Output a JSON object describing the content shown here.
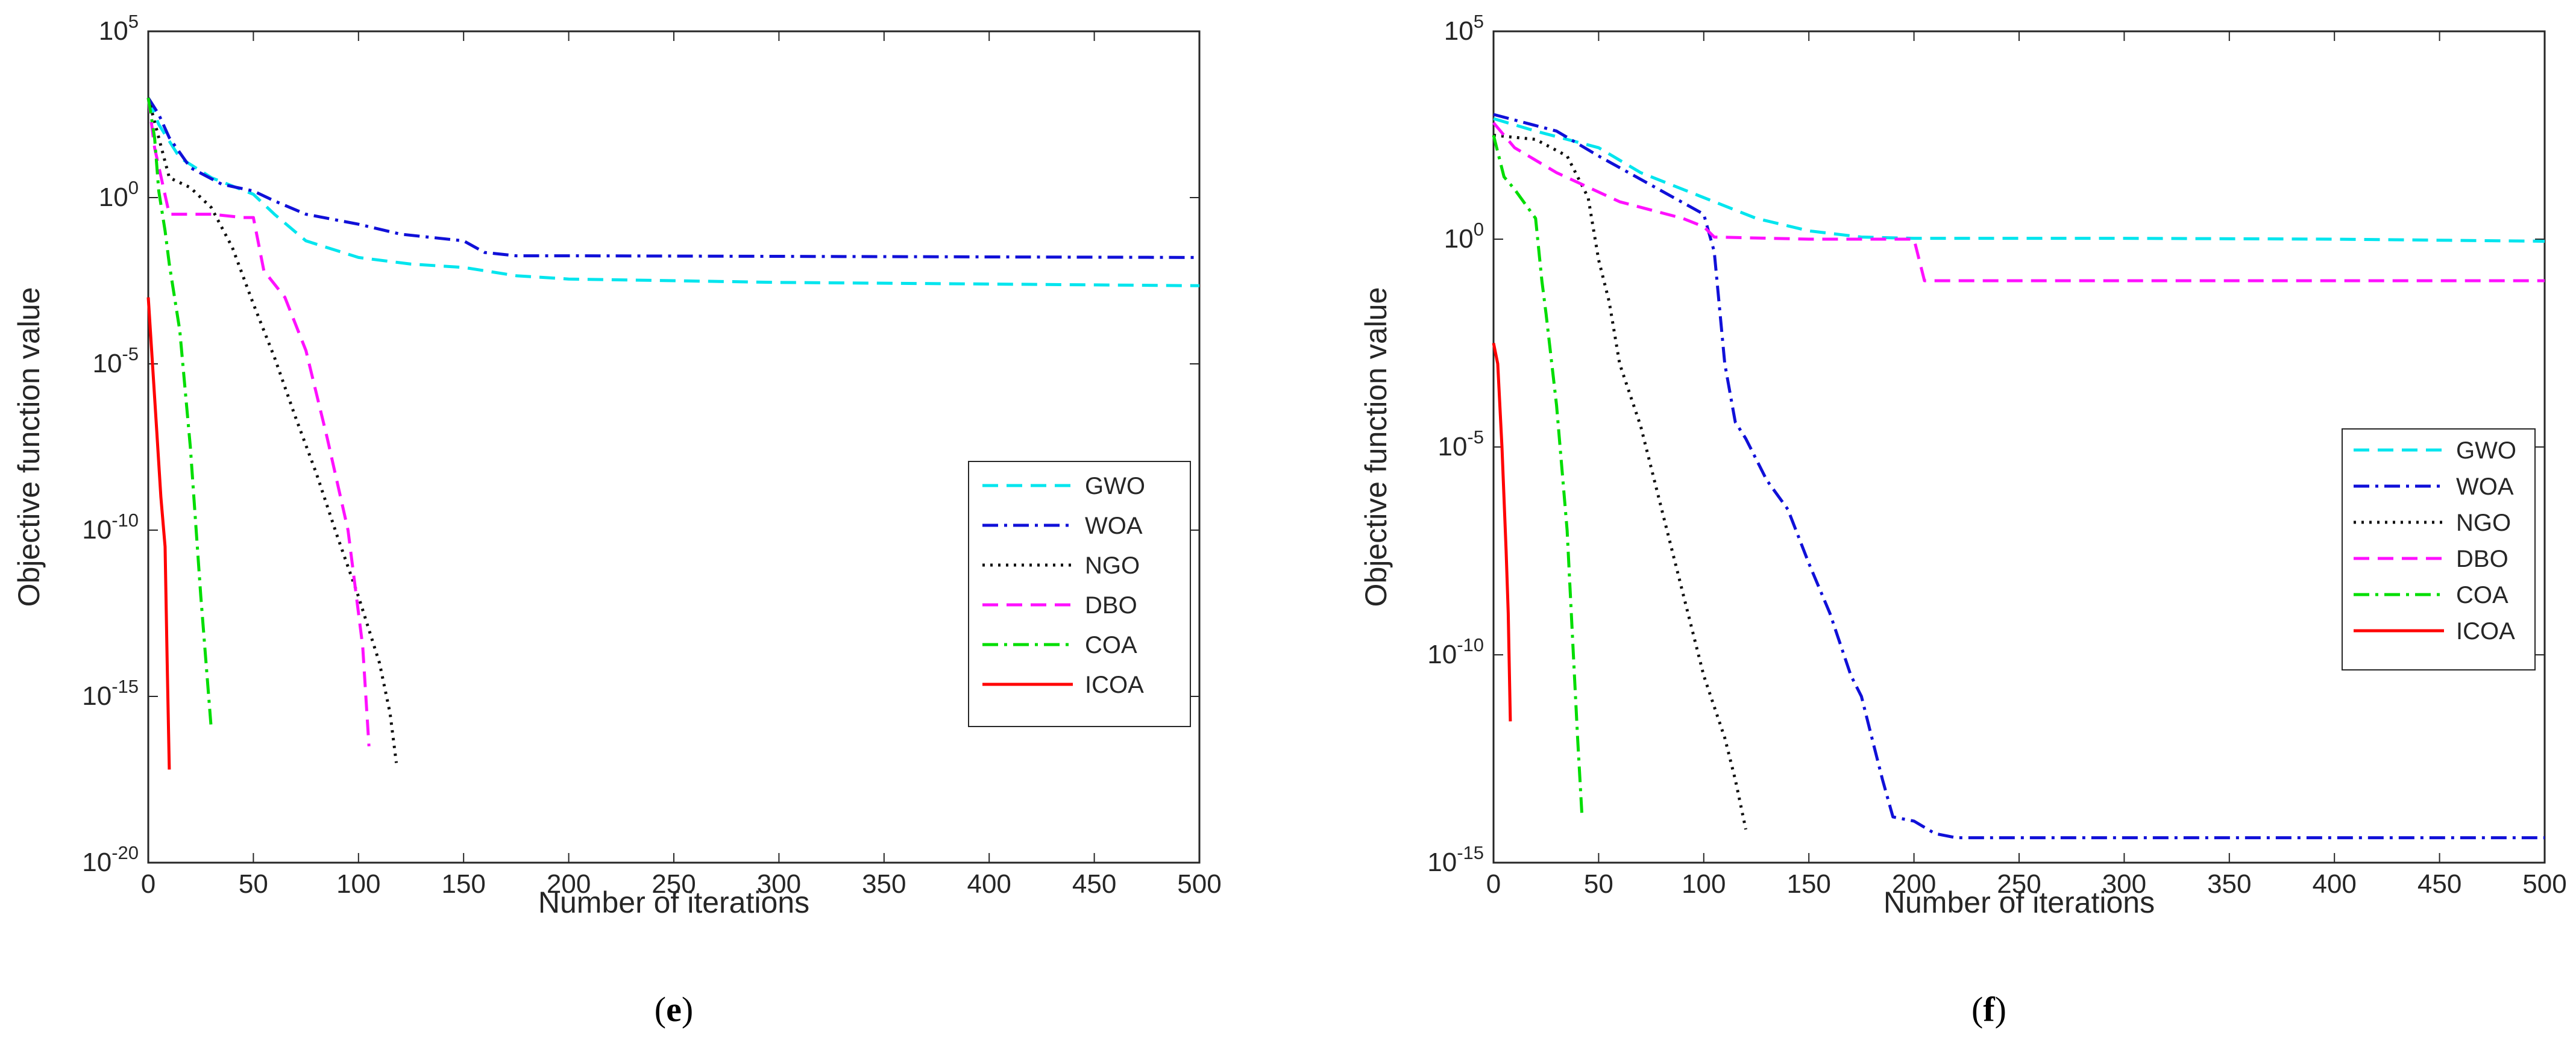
{
  "chart_data": [
    {
      "type": "line",
      "panel": "e",
      "caption": {
        "open": "(",
        "letter": "e",
        "close": ")"
      },
      "title": "",
      "xlabel": "Number of iterations",
      "ylabel": "Objective function value",
      "xlim": [
        0,
        500
      ],
      "ylim_log10": [
        -20,
        5
      ],
      "y_scale": "log",
      "xticks": [
        "0",
        "50",
        "100",
        "150",
        "200",
        "250",
        "300",
        "350",
        "400",
        "450",
        "500"
      ],
      "yticks": [
        {
          "base": "10",
          "exp": "5"
        },
        {
          "base": "10",
          "exp": "0"
        },
        {
          "base": "10",
          "exp": "-5"
        },
        {
          "base": "10",
          "exp": "-10"
        },
        {
          "base": "10",
          "exp": "-15"
        },
        {
          "base": "10",
          "exp": "-20"
        }
      ],
      "legend_position": "right-center",
      "series": [
        {
          "name": "GWO",
          "color": "#00e5ee",
          "dash": "dashed",
          "x_log10y": [
            [
              0,
              3.0
            ],
            [
              5,
              2.2
            ],
            [
              15,
              1.2
            ],
            [
              30,
              0.6
            ],
            [
              50,
              0.1
            ],
            [
              60,
              -0.5
            ],
            [
              75,
              -1.3
            ],
            [
              100,
              -1.8
            ],
            [
              125,
              -2.0
            ],
            [
              150,
              -2.1
            ],
            [
              175,
              -2.35
            ],
            [
              200,
              -2.45
            ],
            [
              300,
              -2.55
            ],
            [
              400,
              -2.6
            ],
            [
              500,
              -2.65
            ]
          ]
        },
        {
          "name": "WOA",
          "color": "#1010d8",
          "dash": "dashdot",
          "x_log10y": [
            [
              0,
              3.0
            ],
            [
              5,
              2.5
            ],
            [
              10,
              1.8
            ],
            [
              20,
              0.9
            ],
            [
              35,
              0.4
            ],
            [
              50,
              0.2
            ],
            [
              60,
              -0.1
            ],
            [
              75,
              -0.5
            ],
            [
              100,
              -0.8
            ],
            [
              120,
              -1.1
            ],
            [
              150,
              -1.3
            ],
            [
              160,
              -1.65
            ],
            [
              175,
              -1.75
            ],
            [
              200,
              -1.75
            ],
            [
              500,
              -1.8
            ]
          ]
        },
        {
          "name": "NGO",
          "color": "#101010",
          "dash": "dotted",
          "x_log10y": [
            [
              0,
              3.0
            ],
            [
              5,
              1.8
            ],
            [
              10,
              0.6
            ],
            [
              20,
              0.3
            ],
            [
              30,
              -0.3
            ],
            [
              40,
              -1.5
            ],
            [
              50,
              -3.2
            ],
            [
              60,
              -4.8
            ],
            [
              70,
              -6.6
            ],
            [
              80,
              -8.3
            ],
            [
              90,
              -10.2
            ],
            [
              100,
              -12.0
            ],
            [
              110,
              -14.0
            ],
            [
              115,
              -15.5
            ],
            [
              118,
              -17.0
            ]
          ]
        },
        {
          "name": "DBO",
          "color": "#ff10ff",
          "dash": "dashed",
          "x_log10y": [
            [
              0,
              3.0
            ],
            [
              3,
              1.5
            ],
            [
              10,
              -0.5
            ],
            [
              20,
              -0.5
            ],
            [
              30,
              -0.5
            ],
            [
              45,
              -0.6
            ],
            [
              50,
              -0.6
            ],
            [
              55,
              -2.2
            ],
            [
              65,
              -3.0
            ],
            [
              75,
              -4.6
            ],
            [
              85,
              -7.2
            ],
            [
              95,
              -10.0
            ],
            [
              102,
              -13.5
            ],
            [
              105,
              -16.5
            ]
          ]
        },
        {
          "name": "COA",
          "color": "#00dd00",
          "dash": "dashdot",
          "x_log10y": [
            [
              0,
              3.0
            ],
            [
              3,
              1.8
            ],
            [
              5,
              0.2
            ],
            [
              8,
              -1.0
            ],
            [
              10,
              -2.0
            ],
            [
              15,
              -4.0
            ],
            [
              20,
              -7.5
            ],
            [
              25,
              -12.0
            ],
            [
              30,
              -16.0
            ]
          ]
        },
        {
          "name": "ICOA",
          "color": "#ff0000",
          "dash": "solid",
          "x_log10y": [
            [
              0,
              -3.0
            ],
            [
              2,
              -5.0
            ],
            [
              4,
              -7.0
            ],
            [
              6,
              -9.0
            ],
            [
              8,
              -10.5
            ],
            [
              9,
              -14.0
            ],
            [
              10,
              -17.2
            ]
          ]
        }
      ]
    },
    {
      "type": "line",
      "panel": "f",
      "caption": {
        "open": "(",
        "letter": "f",
        "close": ")"
      },
      "title": "",
      "xlabel": "Number of iterations",
      "ylabel": "Objective function value",
      "xlim": [
        0,
        500
      ],
      "ylim_log10": [
        -15,
        5
      ],
      "y_scale": "log",
      "xticks": [
        "0",
        "50",
        "100",
        "150",
        "200",
        "250",
        "300",
        "350",
        "400",
        "450",
        "500"
      ],
      "yticks": [
        {
          "base": "10",
          "exp": "5"
        },
        {
          "base": "10",
          "exp": "0"
        },
        {
          "base": "10",
          "exp": "-5"
        },
        {
          "base": "10",
          "exp": "-10"
        },
        {
          "base": "10",
          "exp": "-15"
        }
      ],
      "legend_position": "right-center",
      "series": [
        {
          "name": "GWO",
          "color": "#00e5ee",
          "dash": "dashed",
          "x_log10y": [
            [
              0,
              2.9
            ],
            [
              20,
              2.6
            ],
            [
              50,
              2.2
            ],
            [
              70,
              1.6
            ],
            [
              100,
              1.0
            ],
            [
              125,
              0.5
            ],
            [
              150,
              0.2
            ],
            [
              175,
              0.05
            ],
            [
              200,
              0.02
            ],
            [
              300,
              0.02
            ],
            [
              400,
              0.0
            ],
            [
              500,
              -0.05
            ]
          ]
        },
        {
          "name": "WOA",
          "color": "#1010d8",
          "dash": "dashdot",
          "x_log10y": [
            [
              0,
              3.0
            ],
            [
              30,
              2.6
            ],
            [
              50,
              2.0
            ],
            [
              75,
              1.3
            ],
            [
              100,
              0.6
            ],
            [
              105,
              -0.3
            ],
            [
              110,
              -3.0
            ],
            [
              115,
              -4.4
            ],
            [
              120,
              -4.8
            ],
            [
              130,
              -5.8
            ],
            [
              140,
              -6.5
            ],
            [
              150,
              -7.8
            ],
            [
              160,
              -9.0
            ],
            [
              170,
              -10.5
            ],
            [
              175,
              -11.0
            ],
            [
              180,
              -12.0
            ],
            [
              185,
              -13.0
            ],
            [
              190,
              -13.9
            ],
            [
              200,
              -14.0
            ],
            [
              210,
              -14.3
            ],
            [
              220,
              -14.4
            ],
            [
              300,
              -14.4
            ],
            [
              500,
              -14.4
            ]
          ]
        },
        {
          "name": "NGO",
          "color": "#101010",
          "dash": "dotted",
          "x_log10y": [
            [
              0,
              2.5
            ],
            [
              20,
              2.4
            ],
            [
              35,
              2.0
            ],
            [
              45,
              1.0
            ],
            [
              50,
              -0.5
            ],
            [
              55,
              -1.5
            ],
            [
              60,
              -3.0
            ],
            [
              70,
              -4.5
            ],
            [
              80,
              -6.5
            ],
            [
              90,
              -8.5
            ],
            [
              100,
              -10.5
            ],
            [
              110,
              -12.0
            ],
            [
              115,
              -13.0
            ],
            [
              120,
              -14.2
            ]
          ]
        },
        {
          "name": "DBO",
          "color": "#ff10ff",
          "dash": "dashed",
          "x_log10y": [
            [
              0,
              2.8
            ],
            [
              10,
              2.2
            ],
            [
              30,
              1.6
            ],
            [
              60,
              0.9
            ],
            [
              90,
              0.5
            ],
            [
              100,
              0.3
            ],
            [
              105,
              0.05
            ],
            [
              150,
              0.0
            ],
            [
              200,
              0.0
            ],
            [
              205,
              -1.0
            ],
            [
              500,
              -1.0
            ]
          ]
        },
        {
          "name": "COA",
          "color": "#00dd00",
          "dash": "dashdot",
          "x_log10y": [
            [
              0,
              2.5
            ],
            [
              5,
              1.5
            ],
            [
              10,
              1.2
            ],
            [
              20,
              0.5
            ],
            [
              23,
              -1.0
            ],
            [
              25,
              -1.8
            ],
            [
              30,
              -4.0
            ],
            [
              35,
              -7.0
            ],
            [
              38,
              -10.0
            ],
            [
              40,
              -12.0
            ],
            [
              42,
              -13.8
            ]
          ]
        },
        {
          "name": "ICOA",
          "color": "#ff0000",
          "dash": "solid",
          "x_log10y": [
            [
              0,
              -2.5
            ],
            [
              2,
              -3.0
            ],
            [
              4,
              -5.0
            ],
            [
              6,
              -7.5
            ],
            [
              7,
              -9.0
            ],
            [
              8,
              -11.6
            ]
          ]
        }
      ]
    }
  ]
}
